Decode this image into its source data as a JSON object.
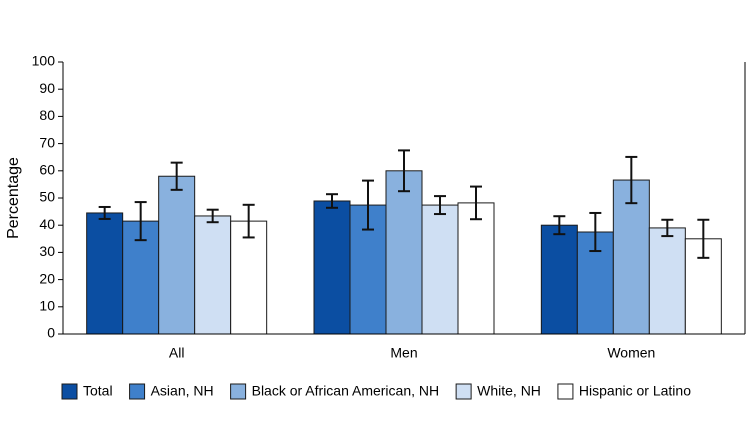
{
  "chart_data": {
    "type": "bar",
    "y_label": "Percentage",
    "categories": [
      "All",
      "Men",
      "Women"
    ],
    "series": [
      {
        "name": "Total",
        "color": "#0b4ea2",
        "values": [
          44.5,
          48.9,
          40
        ],
        "errors": [
          2.2,
          2.5,
          3.3
        ]
      },
      {
        "name": "Asian, NH",
        "color": "#3f80cb",
        "values": [
          41.5,
          47.4,
          37.5
        ],
        "errors": [
          7,
          9,
          7
        ]
      },
      {
        "name": "Black or African American, NH",
        "color": "#89b1de",
        "values": [
          58,
          60,
          56.6
        ],
        "errors": [
          5,
          7.5,
          8.5
        ]
      },
      {
        "name": "White, NH",
        "color": "#cfdff3",
        "values": [
          43.4,
          47.4,
          39
        ],
        "errors": [
          2.3,
          3.3,
          3
        ]
      },
      {
        "name": "Hispanic or Latino",
        "color": "#ffffff",
        "values": [
          41.5,
          48.2,
          35
        ],
        "errors": [
          6,
          6,
          7
        ]
      }
    ],
    "ylim": [
      0,
      100
    ],
    "yticks": [
      0,
      10,
      20,
      30,
      40,
      50,
      60,
      70,
      80,
      90,
      100
    ],
    "legend": "bottom"
  }
}
